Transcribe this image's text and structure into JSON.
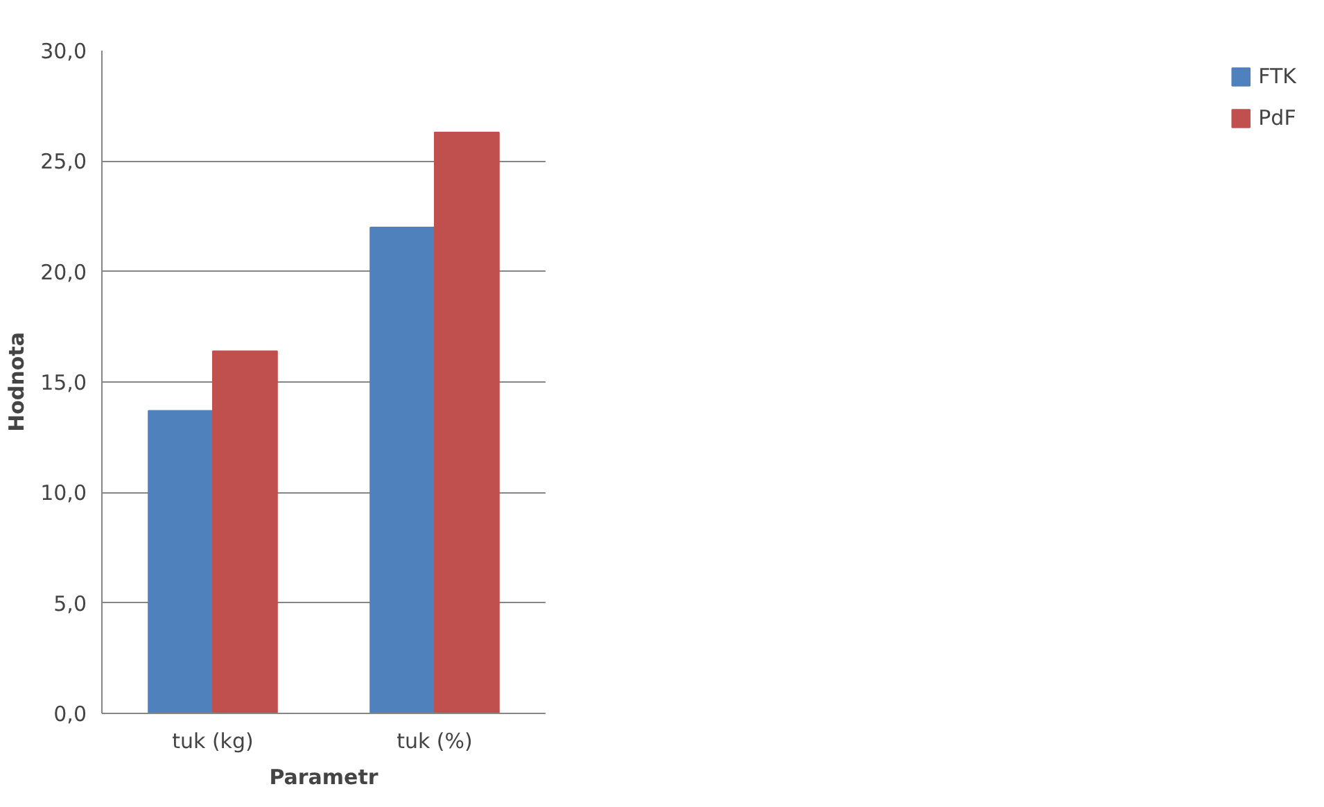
{
  "chart_data": {
    "type": "bar",
    "xlabel": "Parametr",
    "ylabel": "Hodnota",
    "categories": [
      "tuk (kg)",
      "tuk (%)"
    ],
    "series": [
      {
        "name": "FTK",
        "color": "#4f81bd",
        "values": [
          13.7,
          22.0
        ]
      },
      {
        "name": "PdF",
        "color": "#c0504d",
        "values": [
          16.4,
          26.3
        ]
      }
    ],
    "ylim": [
      0,
      30
    ],
    "yticks": [
      {
        "value": 0,
        "label": "0,0"
      },
      {
        "value": 5,
        "label": "5,0"
      },
      {
        "value": 10,
        "label": "10,0"
      },
      {
        "value": 15,
        "label": "15,0"
      },
      {
        "value": 20,
        "label": "20,0"
      },
      {
        "value": 25,
        "label": "25,0"
      },
      {
        "value": 30,
        "label": "30,0"
      }
    ],
    "grid": "y",
    "legend": "right"
  }
}
